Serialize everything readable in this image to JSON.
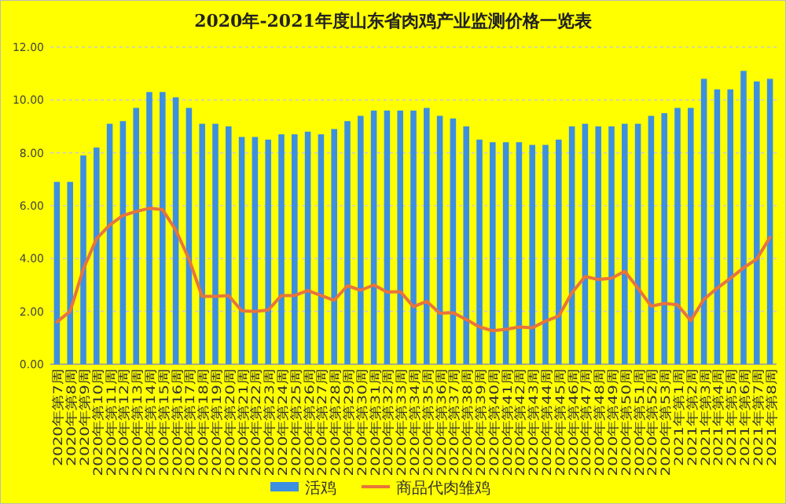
{
  "chart_data": {
    "type": "bar",
    "title": "2020年-2021年度山东省肉鸡产业监测价格一览表",
    "categories": [
      "2020年第7周",
      "2020年第8周",
      "2020年第9周",
      "2020年第10周",
      "2020年第11周",
      "2020年第12周",
      "2020年第13周",
      "2020年第14周",
      "2020年第15周",
      "2020年第16周",
      "2020年第17周",
      "2020年第18周",
      "2020年第19周",
      "2020年第20周",
      "2020年第21周",
      "2020年第22周",
      "2020年第23周",
      "2020年第24周",
      "2020年第25周",
      "2020年第26周",
      "2020年第27周",
      "2020年第28周",
      "2020年第29周",
      "2020年第30周",
      "2020年第31周",
      "2020年第32周",
      "2020年第33周",
      "2020年第34周",
      "2020年第35周",
      "2020年第36周",
      "2020年第37周",
      "2020年第38周",
      "2020年第39周",
      "2020年第40周",
      "2020年第41周",
      "2020年第42周",
      "2020年第43周",
      "2020年第44周",
      "2020年第45周",
      "2020年第46周",
      "2020年第47周",
      "2020年第48周",
      "2020年第49周",
      "2020年第50周",
      "2020年第51周",
      "2020年第52周",
      "2020年第53周",
      "2021年第1周",
      "2021年第2周",
      "2021年第3周",
      "2021年第4周",
      "2021年第5周",
      "2021年第6周",
      "2021年第7周",
      "2021年第8周"
    ],
    "series": [
      {
        "name": "活鸡",
        "color": "#3d8fe0",
        "values": [
          6.9,
          6.9,
          7.9,
          8.2,
          9.1,
          9.2,
          9.7,
          10.3,
          10.3,
          10.1,
          9.7,
          9.1,
          9.1,
          9.0,
          8.6,
          8.6,
          8.5,
          8.7,
          8.7,
          8.8,
          8.7,
          8.9,
          9.2,
          9.4,
          9.6,
          9.6,
          9.6,
          9.6,
          9.7,
          9.4,
          9.3,
          9.0,
          8.5,
          8.4,
          8.4,
          8.4,
          8.3,
          8.3,
          8.5,
          9.0,
          9.1,
          9.0,
          9.0,
          9.1,
          9.1,
          9.4,
          9.5,
          9.7,
          9.7,
          10.8,
          10.4,
          10.4,
          11.1,
          10.7,
          10.8
        ]
      },
      {
        "name": "商品代肉雏鸡",
        "type": "line",
        "color": "#e8743b",
        "values": [
          1.6,
          2.0,
          3.6,
          4.75,
          5.27,
          5.63,
          5.78,
          5.9,
          5.85,
          5.08,
          3.98,
          2.57,
          2.57,
          2.6,
          2.02,
          2.0,
          2.05,
          2.6,
          2.6,
          2.79,
          2.6,
          2.42,
          2.97,
          2.8,
          3.0,
          2.73,
          2.75,
          2.18,
          2.38,
          1.93,
          1.95,
          1.69,
          1.41,
          1.27,
          1.32,
          1.41,
          1.38,
          1.63,
          1.82,
          2.7,
          3.32,
          3.21,
          3.25,
          3.52,
          2.88,
          2.2,
          2.3,
          2.25,
          1.65,
          2.46,
          2.88,
          3.25,
          3.65,
          3.98,
          4.8
        ]
      }
    ],
    "ylim": [
      0,
      12
    ],
    "yticks": [
      {
        "value": 0,
        "label": "0.00"
      },
      {
        "value": 2,
        "label": "2.00"
      },
      {
        "value": 4,
        "label": "4.00"
      },
      {
        "value": 6,
        "label": "6.00"
      },
      {
        "value": 8,
        "label": "8.00"
      },
      {
        "value": 10,
        "label": "10.00"
      },
      {
        "value": 12,
        "label": "12.00"
      }
    ],
    "grid": "y",
    "legend": "bottom"
  }
}
